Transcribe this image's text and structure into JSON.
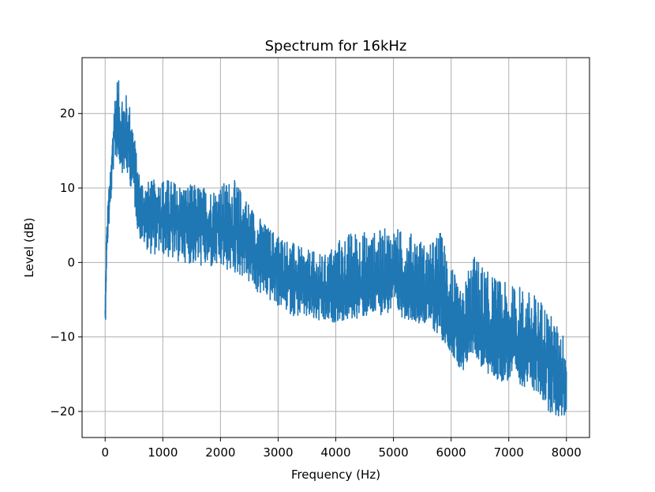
{
  "chart_data": {
    "type": "line",
    "title": "Spectrum for 16kHz",
    "xlabel": "Frequency (Hz)",
    "ylabel": "Level (dB)",
    "xlim": [
      -400,
      8400
    ],
    "ylim": [
      -23.5,
      27.5
    ],
    "grid": true,
    "line_color": "#1f77b4",
    "xticks": [
      0,
      1000,
      2000,
      3000,
      4000,
      5000,
      6000,
      7000,
      8000
    ],
    "xtick_labels": [
      "0",
      "1000",
      "2000",
      "3000",
      "4000",
      "5000",
      "6000",
      "7000",
      "8000"
    ],
    "yticks": [
      -20,
      -10,
      0,
      10,
      20
    ],
    "ytick_labels": [
      "−20",
      "−10",
      "0",
      "10",
      "20"
    ],
    "series": [
      {
        "x": [
          0,
          20,
          50,
          100,
          150,
          200,
          250,
          300,
          350,
          400,
          450,
          500,
          550,
          600,
          700,
          800,
          1000,
          1200,
          1400,
          1600,
          1800,
          2000,
          2200,
          2400,
          2600,
          2800,
          3000,
          3200,
          3400,
          3600,
          3800,
          4000,
          4200,
          4400,
          4600,
          4800,
          5000,
          5200,
          5400,
          5600,
          5800,
          6000,
          6100,
          6200,
          6300,
          6400,
          6500,
          6600,
          6800,
          7000,
          7200,
          7400,
          7600,
          7800,
          8000
        ],
        "center": [
          -8,
          1,
          6,
          10,
          17,
          18,
          17,
          17,
          16.5,
          16,
          15,
          13,
          10,
          7,
          6,
          6,
          6,
          5.5,
          5,
          5,
          4.5,
          4.5,
          4,
          3.5,
          1,
          0,
          -1,
          -2,
          -3,
          -3.5,
          -4,
          -4,
          -3.5,
          -3,
          -3,
          -2.5,
          -2.5,
          -3,
          -3.5,
          -4,
          -5,
          -7,
          -10,
          -12,
          -10,
          -8,
          -9,
          -10,
          -11,
          -11,
          -11.5,
          -12,
          -12.5,
          -14,
          -16
        ],
        "lower": [
          -11,
          -2,
          3,
          8,
          13,
          14,
          13,
          12,
          12,
          11,
          10,
          8,
          5,
          3,
          2,
          1,
          1,
          0,
          0,
          -0.5,
          -1,
          -1,
          -1.5,
          -2,
          -4,
          -5,
          -6,
          -7,
          -7.5,
          -8,
          -8.5,
          -8,
          -8,
          -7.5,
          -7.5,
          -7,
          -7,
          -7.5,
          -8,
          -8.5,
          -10,
          -12,
          -14,
          -16,
          -13,
          -12,
          -14,
          -15,
          -16,
          -16,
          -16.5,
          -17,
          -19,
          -21,
          -21
        ],
        "upper": [
          -5,
          4,
          9,
          13,
          22,
          25.5,
          24,
          23.5,
          23,
          22,
          21,
          18,
          14,
          12,
          11,
          11,
          11.5,
          11,
          10.5,
          10.5,
          10,
          10.5,
          11.5,
          9.5,
          7,
          5,
          4,
          3,
          2,
          1.5,
          1,
          3,
          4,
          4.5,
          4,
          4.5,
          5,
          4,
          4,
          2,
          4.5,
          1,
          -3,
          -4,
          0,
          1,
          0.5,
          -1,
          -2,
          -3,
          -3,
          -4,
          -5,
          -8,
          -10
        ]
      }
    ]
  }
}
